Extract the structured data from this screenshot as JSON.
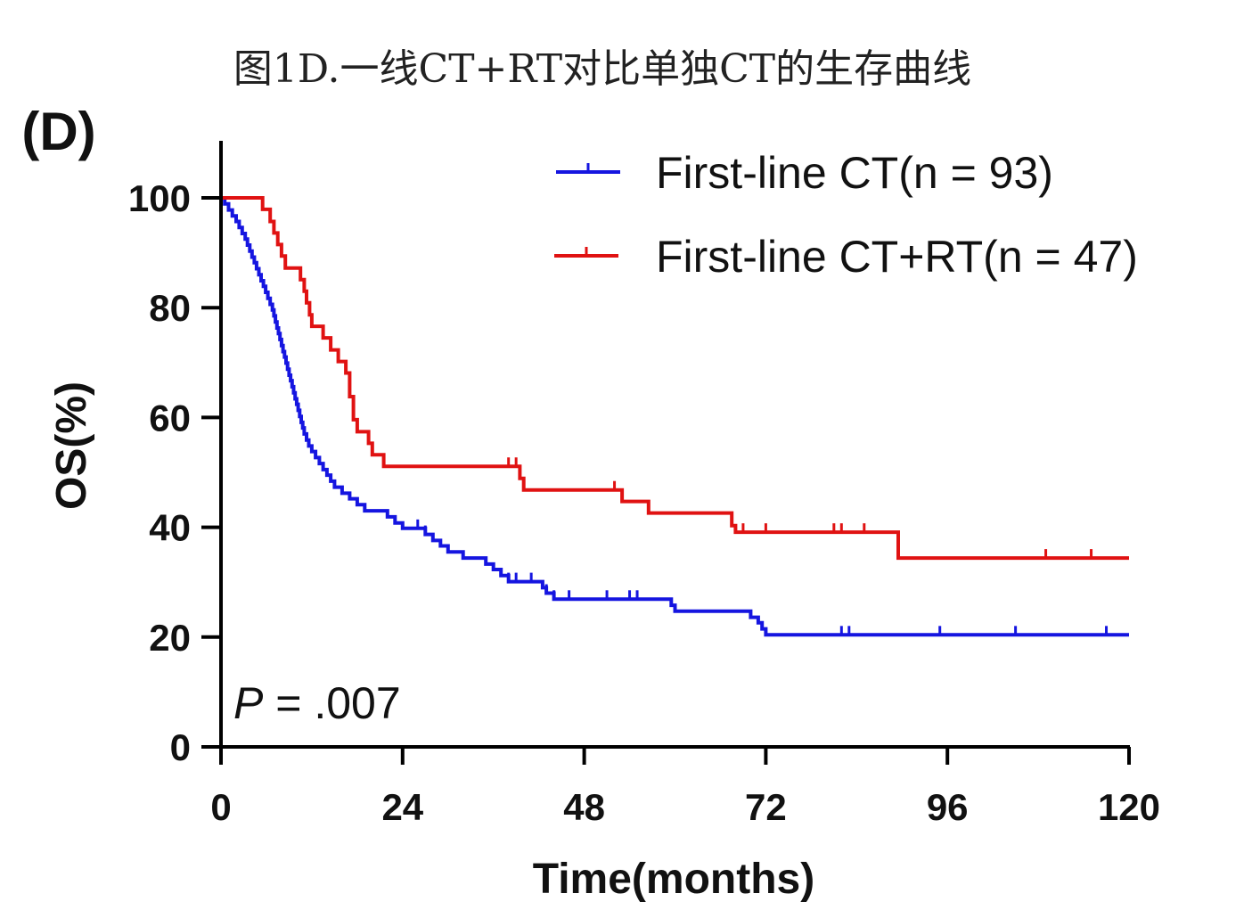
{
  "caption": "图1D.一线CT+RT对比单独CT的生存曲线",
  "panel_label": "(D)",
  "p_value": {
    "prefix": "P",
    "text": " = .007"
  },
  "colors": {
    "ct": "#1515e0",
    "ct_rt": "#e01212",
    "axis": "#000000"
  },
  "chart_data": {
    "type": "line",
    "subtype": "kaplan-meier step",
    "xlabel": "Time(months)",
    "ylabel": "OS(%)",
    "xlim": [
      0,
      120
    ],
    "ylim": [
      0,
      100
    ],
    "xticks": [
      0,
      24,
      48,
      72,
      96,
      120
    ],
    "yticks": [
      0,
      20,
      40,
      60,
      80,
      100
    ],
    "grid": false,
    "legend_position": "top-right",
    "series": [
      {
        "name": "First-line CT(n = 93)",
        "color": "#1515e0",
        "points": [
          [
            0,
            100
          ],
          [
            0.5,
            98.9
          ],
          [
            1,
            97.8
          ],
          [
            1.5,
            96.7
          ],
          [
            2,
            95.7
          ],
          [
            2.4,
            94.6
          ],
          [
            2.8,
            93.5
          ],
          [
            3.2,
            92.5
          ],
          [
            3.5,
            91.4
          ],
          [
            3.8,
            90.3
          ],
          [
            4.1,
            89.2
          ],
          [
            4.4,
            88.2
          ],
          [
            4.7,
            87.1
          ],
          [
            5,
            86
          ],
          [
            5.3,
            84.9
          ],
          [
            5.6,
            83.9
          ],
          [
            5.9,
            82.8
          ],
          [
            6.2,
            81.7
          ],
          [
            6.5,
            80.6
          ],
          [
            6.8,
            79.6
          ],
          [
            7,
            78.5
          ],
          [
            7.2,
            77.4
          ],
          [
            7.4,
            76.3
          ],
          [
            7.6,
            75.3
          ],
          [
            7.8,
            74.2
          ],
          [
            8,
            73.1
          ],
          [
            8.2,
            72
          ],
          [
            8.4,
            71
          ],
          [
            8.6,
            69.9
          ],
          [
            8.8,
            68.8
          ],
          [
            9,
            67.7
          ],
          [
            9.2,
            66.7
          ],
          [
            9.4,
            65.6
          ],
          [
            9.6,
            64.5
          ],
          [
            9.8,
            63.4
          ],
          [
            10,
            62.4
          ],
          [
            10.2,
            61.3
          ],
          [
            10.4,
            60.2
          ],
          [
            10.6,
            59.1
          ],
          [
            10.8,
            58.1
          ],
          [
            11,
            57
          ],
          [
            11.3,
            55.9
          ],
          [
            11.6,
            54.8
          ],
          [
            12,
            53.8
          ],
          [
            12.5,
            52.7
          ],
          [
            13,
            51.6
          ],
          [
            13.5,
            50.5
          ],
          [
            14,
            49.5
          ],
          [
            14.5,
            48.4
          ],
          [
            15,
            47.3
          ],
          [
            16,
            46.2
          ],
          [
            17,
            45.2
          ],
          [
            18,
            44.1
          ],
          [
            19,
            43
          ],
          [
            21,
            43
          ],
          [
            22,
            41.9
          ],
          [
            23,
            40.8
          ],
          [
            24,
            39.8
          ],
          [
            26,
            39.8
          ],
          [
            27,
            38.7
          ],
          [
            28,
            37.6
          ],
          [
            29,
            36.6
          ],
          [
            30,
            35.5
          ],
          [
            32,
            34.4
          ],
          [
            35,
            33.3
          ],
          [
            36,
            32.3
          ],
          [
            37,
            31.2
          ],
          [
            38,
            30.1
          ],
          [
            42,
            30.1
          ],
          [
            42.5,
            29
          ],
          [
            43,
            28
          ],
          [
            44,
            26.9
          ],
          [
            59,
            26.9
          ],
          [
            59.5,
            25.8
          ],
          [
            60,
            24.7
          ],
          [
            69,
            24.7
          ],
          [
            70,
            23.6
          ],
          [
            71,
            22.6
          ],
          [
            71.5,
            21.5
          ],
          [
            72,
            20.4
          ],
          [
            120,
            20.4
          ]
        ],
        "censor_x": [
          26,
          27,
          38,
          39,
          41,
          43,
          44,
          46,
          51,
          54,
          55,
          82,
          83,
          95,
          105,
          117
        ]
      },
      {
        "name": "First-line CT+RT(n = 47)",
        "color": "#e01212",
        "points": [
          [
            0,
            100
          ],
          [
            5,
            100
          ],
          [
            5.5,
            97.9
          ],
          [
            6.5,
            95.7
          ],
          [
            7,
            93.6
          ],
          [
            7.5,
            91.5
          ],
          [
            8,
            89.4
          ],
          [
            8.5,
            87.2
          ],
          [
            10,
            87.2
          ],
          [
            10.5,
            85.1
          ],
          [
            11,
            83
          ],
          [
            11.3,
            80.9
          ],
          [
            11.7,
            78.7
          ],
          [
            12,
            76.6
          ],
          [
            13,
            76.6
          ],
          [
            13.5,
            74.5
          ],
          [
            14.5,
            72.3
          ],
          [
            15.5,
            70.2
          ],
          [
            16,
            70.2
          ],
          [
            16.5,
            68.1
          ],
          [
            17,
            63.8
          ],
          [
            17.5,
            59.6
          ],
          [
            18,
            57.4
          ],
          [
            19,
            57.4
          ],
          [
            19.5,
            55.3
          ],
          [
            20,
            53.2
          ],
          [
            21,
            53.2
          ],
          [
            21.5,
            51.1
          ],
          [
            39,
            51.1
          ],
          [
            39.5,
            48.9
          ],
          [
            40,
            46.8
          ],
          [
            52,
            46.8
          ],
          [
            53,
            44.7
          ],
          [
            56,
            44.7
          ],
          [
            56.5,
            42.6
          ],
          [
            67,
            42.6
          ],
          [
            67.5,
            40.3
          ],
          [
            68,
            39.1
          ],
          [
            89,
            39.1
          ],
          [
            89.5,
            34.4
          ],
          [
            120,
            34.4
          ]
        ],
        "censor_x": [
          38,
          39,
          52,
          69,
          72,
          81,
          82,
          85,
          109,
          115
        ]
      }
    ]
  }
}
